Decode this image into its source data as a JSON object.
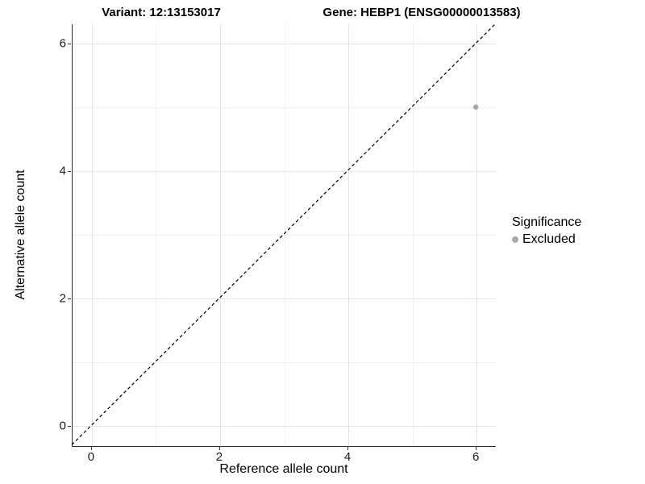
{
  "chart_data": {
    "type": "scatter",
    "titles": [
      "Variant: 12:13153017",
      "Gene: HEBP1 (ENSG00000013583)"
    ],
    "xlabel": "Reference allele count",
    "ylabel": "Alternative allele count",
    "xlim": [
      -0.3,
      6.3
    ],
    "ylim": [
      -0.32,
      6.3
    ],
    "xticks": [
      0,
      2,
      4,
      6
    ],
    "yticks": [
      0,
      2,
      4,
      6
    ],
    "minor_xticks": [
      1,
      3,
      5
    ],
    "minor_yticks": [
      1,
      3,
      5
    ],
    "grid": true,
    "series": [
      {
        "name": "Excluded",
        "color": "#a8a8a8",
        "point_size": 3.2,
        "points": [
          {
            "x": 6,
            "y": 5
          }
        ]
      }
    ],
    "reference_line": {
      "type": "identity",
      "style": "dashed",
      "color": "#000000"
    },
    "legend": {
      "title": "Significance",
      "position": "right",
      "items": [
        {
          "label": "Excluded",
          "color": "#a8a8a8"
        }
      ]
    },
    "colors": {
      "background": "#ffffff",
      "grid_major": "#e4e4e4",
      "grid_minor": "#f0f0f0",
      "axis": "#2b2b2b"
    }
  }
}
